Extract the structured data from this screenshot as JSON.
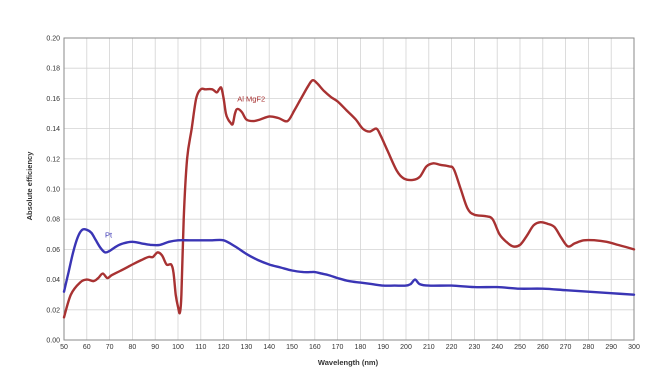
{
  "chart_data": {
    "type": "line",
    "title": "",
    "xlabel": "Wavelength (nm)",
    "ylabel": "Absolute efficiency",
    "xlim": [
      50,
      300
    ],
    "ylim": [
      0,
      0.2
    ],
    "grid": true,
    "x_ticks": [
      50,
      60,
      70,
      80,
      90,
      100,
      110,
      120,
      130,
      140,
      150,
      160,
      170,
      180,
      190,
      200,
      210,
      220,
      230,
      240,
      250,
      260,
      270,
      280,
      290,
      300
    ],
    "x_tick_labels": [
      "50",
      "60",
      "70",
      "80",
      "90",
      "100",
      "110",
      "120",
      "130",
      "140",
      "150",
      "160",
      "170",
      "180",
      "190",
      "200",
      "210",
      "220",
      "230",
      "240",
      "250",
      "260",
      "270",
      "280",
      "290",
      "300"
    ],
    "y_ticks": [
      0,
      0.02,
      0.04,
      0.06,
      0.08,
      0.1,
      0.12,
      0.14,
      0.16,
      0.18,
      0.2
    ],
    "y_tick_labels": [
      "0.00",
      "0.02",
      "0.04",
      "0.06",
      "0.08",
      "0.10",
      "0.12",
      "0.14",
      "0.16",
      "0.18",
      "0.20"
    ],
    "series": [
      {
        "name": "Al MgF2",
        "color": "#a83232",
        "points": [
          [
            50,
            0.015
          ],
          [
            53,
            0.03
          ],
          [
            57,
            0.038
          ],
          [
            60,
            0.04
          ],
          [
            63,
            0.039
          ],
          [
            65,
            0.041
          ],
          [
            67,
            0.044
          ],
          [
            69,
            0.041
          ],
          [
            71,
            0.043
          ],
          [
            75,
            0.046
          ],
          [
            80,
            0.05
          ],
          [
            84,
            0.053
          ],
          [
            87,
            0.055
          ],
          [
            89,
            0.055
          ],
          [
            91,
            0.058
          ],
          [
            93,
            0.056
          ],
          [
            95,
            0.05
          ],
          [
            97,
            0.05
          ],
          [
            98,
            0.045
          ],
          [
            99,
            0.03
          ],
          [
            100,
            0.022
          ],
          [
            100.8,
            0.018
          ],
          [
            101.5,
            0.03
          ],
          [
            102.5,
            0.08
          ],
          [
            104,
            0.12
          ],
          [
            106,
            0.14
          ],
          [
            108,
            0.16
          ],
          [
            110,
            0.166
          ],
          [
            112,
            0.166
          ],
          [
            115,
            0.166
          ],
          [
            117,
            0.164
          ],
          [
            118,
            0.166
          ],
          [
            119,
            0.167
          ],
          [
            120,
            0.16
          ],
          [
            121,
            0.15
          ],
          [
            122,
            0.146
          ],
          [
            123,
            0.144
          ],
          [
            124,
            0.143
          ],
          [
            125,
            0.15
          ],
          [
            126,
            0.153
          ],
          [
            128,
            0.151
          ],
          [
            130,
            0.146
          ],
          [
            133,
            0.145
          ],
          [
            136,
            0.146
          ],
          [
            140,
            0.148
          ],
          [
            144,
            0.147
          ],
          [
            148,
            0.145
          ],
          [
            151,
            0.152
          ],
          [
            154,
            0.16
          ],
          [
            157,
            0.168
          ],
          [
            159,
            0.172
          ],
          [
            161,
            0.17
          ],
          [
            164,
            0.165
          ],
          [
            167,
            0.161
          ],
          [
            170,
            0.158
          ],
          [
            174,
            0.152
          ],
          [
            178,
            0.146
          ],
          [
            181,
            0.14
          ],
          [
            184,
            0.138
          ],
          [
            187,
            0.14
          ],
          [
            189,
            0.135
          ],
          [
            192,
            0.125
          ],
          [
            196,
            0.112
          ],
          [
            199,
            0.107
          ],
          [
            203,
            0.106
          ],
          [
            206,
            0.108
          ],
          [
            209,
            0.115
          ],
          [
            212,
            0.117
          ],
          [
            215,
            0.116
          ],
          [
            219,
            0.115
          ],
          [
            221,
            0.113
          ],
          [
            224,
            0.1
          ],
          [
            227,
            0.087
          ],
          [
            230,
            0.083
          ],
          [
            235,
            0.082
          ],
          [
            238,
            0.08
          ],
          [
            241,
            0.07
          ],
          [
            244,
            0.065
          ],
          [
            247,
            0.062
          ],
          [
            250,
            0.063
          ],
          [
            253,
            0.069
          ],
          [
            256,
            0.076
          ],
          [
            259,
            0.078
          ],
          [
            262,
            0.077
          ],
          [
            265,
            0.075
          ],
          [
            268,
            0.068
          ],
          [
            271,
            0.062
          ],
          [
            274,
            0.064
          ],
          [
            278,
            0.066
          ],
          [
            283,
            0.066
          ],
          [
            288,
            0.065
          ],
          [
            293,
            0.063
          ],
          [
            300,
            0.06
          ]
        ]
      },
      {
        "name": "Pt",
        "color": "#3a35b5",
        "points": [
          [
            50,
            0.032
          ],
          [
            52,
            0.045
          ],
          [
            54,
            0.058
          ],
          [
            56,
            0.068
          ],
          [
            58,
            0.073
          ],
          [
            60,
            0.073
          ],
          [
            62,
            0.071
          ],
          [
            64,
            0.066
          ],
          [
            66,
            0.061
          ],
          [
            68,
            0.058
          ],
          [
            70,
            0.059
          ],
          [
            73,
            0.062
          ],
          [
            76,
            0.064
          ],
          [
            80,
            0.065
          ],
          [
            84,
            0.064
          ],
          [
            88,
            0.063
          ],
          [
            92,
            0.063
          ],
          [
            96,
            0.065
          ],
          [
            100,
            0.066
          ],
          [
            105,
            0.066
          ],
          [
            110,
            0.066
          ],
          [
            115,
            0.066
          ],
          [
            120,
            0.066
          ],
          [
            125,
            0.062
          ],
          [
            130,
            0.057
          ],
          [
            135,
            0.053
          ],
          [
            140,
            0.05
          ],
          [
            145,
            0.048
          ],
          [
            150,
            0.046
          ],
          [
            155,
            0.045
          ],
          [
            158,
            0.045
          ],
          [
            160,
            0.045
          ],
          [
            163,
            0.044
          ],
          [
            166,
            0.043
          ],
          [
            170,
            0.041
          ],
          [
            175,
            0.039
          ],
          [
            180,
            0.038
          ],
          [
            185,
            0.037
          ],
          [
            190,
            0.036
          ],
          [
            195,
            0.036
          ],
          [
            200,
            0.036
          ],
          [
            202,
            0.037
          ],
          [
            204,
            0.04
          ],
          [
            206,
            0.037
          ],
          [
            210,
            0.036
          ],
          [
            220,
            0.036
          ],
          [
            230,
            0.035
          ],
          [
            240,
            0.035
          ],
          [
            250,
            0.034
          ],
          [
            260,
            0.034
          ],
          [
            270,
            0.033
          ],
          [
            280,
            0.032
          ],
          [
            290,
            0.031
          ],
          [
            300,
            0.03
          ]
        ]
      }
    ]
  }
}
